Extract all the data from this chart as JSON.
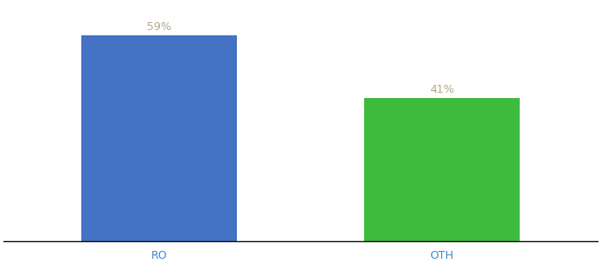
{
  "categories": [
    "RO",
    "OTH"
  ],
  "values": [
    59,
    41
  ],
  "bar_colors": [
    "#4472C4",
    "#3DBB3D"
  ],
  "label_color": "#b0a888",
  "bar_width": 0.55,
  "ylim": [
    0,
    68
  ],
  "background_color": "#ffffff",
  "label_fontsize": 9,
  "tick_fontsize": 9,
  "tick_color": "#4488cc",
  "spine_color": "#111111"
}
